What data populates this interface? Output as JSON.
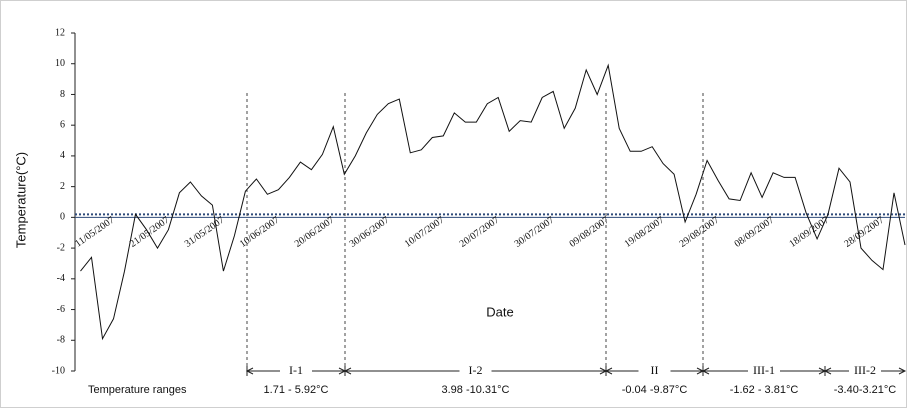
{
  "chart_data": {
    "type": "line",
    "x_label": "Date",
    "y_label": "Temperature(°C)",
    "color": "#111111",
    "xlim": [
      "04/05/2007",
      "02/10/2007"
    ],
    "xticks": [
      "11/05/2007",
      "21/05/2007",
      "31/05/2007",
      "10/06/2007",
      "20/06/2007",
      "30/06/2007",
      "10/07/2007",
      "20/07/2007",
      "30/07/2007",
      "09/08/2007",
      "19/08/2007",
      "29/08/2007",
      "08/09/2007",
      "18/09/2007",
      "28/09/2007"
    ],
    "ylim": [
      -10,
      12
    ],
    "yticks": [
      -10,
      -8,
      -6,
      -4,
      -2,
      0,
      2,
      4,
      6,
      8,
      10,
      12
    ],
    "x": [
      "05/05/2007",
      "07/05/2007",
      "09/05/2007",
      "11/05/2007",
      "13/05/2007",
      "15/05/2007",
      "17/05/2007",
      "19/05/2007",
      "21/05/2007",
      "23/05/2007",
      "25/05/2007",
      "27/05/2007",
      "29/05/2007",
      "31/05/2007",
      "02/06/2007",
      "04/06/2007",
      "06/06/2007",
      "08/06/2007",
      "10/06/2007",
      "12/06/2007",
      "14/06/2007",
      "16/06/2007",
      "18/06/2007",
      "20/06/2007",
      "22/06/2007",
      "24/06/2007",
      "26/06/2007",
      "28/06/2007",
      "30/06/2007",
      "02/07/2007",
      "04/07/2007",
      "06/07/2007",
      "08/07/2007",
      "10/07/2007",
      "12/07/2007",
      "14/07/2007",
      "16/07/2007",
      "18/07/2007",
      "20/07/2007",
      "22/07/2007",
      "24/07/2007",
      "26/07/2007",
      "28/07/2007",
      "30/07/2007",
      "01/08/2007",
      "03/08/2007",
      "05/08/2007",
      "07/08/2007",
      "09/08/2007",
      "11/08/2007",
      "13/08/2007",
      "15/08/2007",
      "17/08/2007",
      "19/08/2007",
      "21/08/2007",
      "23/08/2007",
      "25/08/2007",
      "27/08/2007",
      "29/08/2007",
      "31/08/2007",
      "02/09/2007",
      "04/09/2007",
      "06/09/2007",
      "08/09/2007",
      "10/09/2007",
      "12/09/2007",
      "14/09/2007",
      "16/09/2007",
      "18/09/2007",
      "20/09/2007",
      "22/09/2007",
      "24/09/2007",
      "26/09/2007",
      "28/09/2007",
      "30/09/2007",
      "02/10/2007"
    ],
    "values": [
      -3.5,
      -2.6,
      -7.9,
      -6.6,
      -3.5,
      0.2,
      -0.8,
      -2,
      -0.8,
      1.6,
      2.3,
      1.4,
      0.8,
      -3.5,
      -1.2,
      1.7,
      2.5,
      1.5,
      1.8,
      2.6,
      3.6,
      3.1,
      4.1,
      5.9,
      2.8,
      4,
      5.5,
      6.7,
      7.4,
      7.7,
      4.2,
      4.4,
      5.2,
      5.3,
      6.8,
      6.2,
      6.2,
      7.4,
      7.8,
      5.6,
      6.3,
      6.2,
      7.8,
      8.2,
      5.8,
      7.1,
      9.6,
      8,
      9.9,
      5.8,
      4.3,
      4.3,
      4.6,
      3.5,
      2.8,
      -0.3,
      1.5,
      3.7,
      2.4,
      1.2,
      1.1,
      2.9,
      1.3,
      2.9,
      2.6,
      2.6,
      0.3,
      -1.4,
      0.2,
      3.2,
      2.3,
      -2,
      -2.8,
      -3.4,
      1.6,
      -1.8
    ],
    "ranges_label": "Temperature ranges",
    "periods": [
      {
        "label": "I-1",
        "range": "1.71 - 5.92°C"
      },
      {
        "label": "I-2",
        "range": "3.98 -10.31°C"
      },
      {
        "label": "II",
        "range": "-0.04 -9.87°C"
      },
      {
        "label": "III-1",
        "range": "-1.62 - 3.81°C"
      },
      {
        "label": "III-2",
        "range": "-3.40-3.21°C"
      }
    ]
  }
}
